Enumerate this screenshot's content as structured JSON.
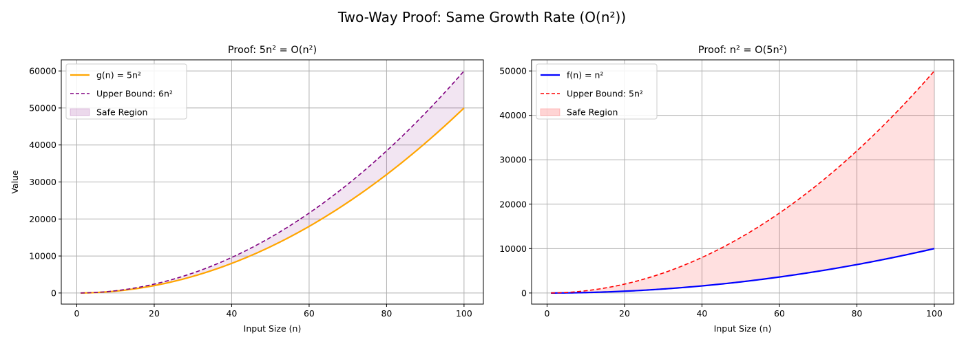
{
  "figure": {
    "title": "Two-Way Proof: Same Growth Rate (O(n²))"
  },
  "chart_data": [
    {
      "type": "line",
      "title": "Proof: 5n² = O(n²)",
      "xlabel": "Input Size (n)",
      "ylabel": "Value",
      "xlim": [
        -4,
        105
      ],
      "ylim": [
        -3000,
        63000
      ],
      "xticks": [
        0,
        20,
        40,
        60,
        80,
        100
      ],
      "yticks": [
        0,
        10000,
        20000,
        30000,
        40000,
        50000,
        60000
      ],
      "grid": true,
      "legend_position": "upper-left",
      "x_range": [
        1,
        100
      ],
      "series": [
        {
          "name": "g(n) = 5n²",
          "formula": "5n^2",
          "coef": 5,
          "color": "#ffa500",
          "style": "solid",
          "x": [
            1,
            10,
            20,
            30,
            40,
            50,
            60,
            70,
            80,
            90,
            100
          ],
          "y": [
            5,
            500,
            2000,
            4500,
            8000,
            12500,
            18000,
            24500,
            32000,
            40500,
            50000
          ]
        },
        {
          "name": "Upper Bound: 6n²",
          "formula": "6n^2",
          "coef": 6,
          "color": "#800080",
          "style": "dashed",
          "x": [
            1,
            10,
            20,
            30,
            40,
            50,
            60,
            70,
            80,
            90,
            100
          ],
          "y": [
            6,
            600,
            2400,
            5400,
            9600,
            15000,
            21600,
            29400,
            38400,
            48600,
            60000
          ]
        }
      ],
      "fill": {
        "name": "Safe Region",
        "between": [
          "g(n) = 5n²",
          "Upper Bound: 6n²"
        ],
        "color": "#800080",
        "opacity": 0.1
      }
    },
    {
      "type": "line",
      "title": "Proof: n² = O(5n²)",
      "xlabel": "Input Size (n)",
      "ylabel": "",
      "xlim": [
        -4,
        105
      ],
      "ylim": [
        -2500,
        52500
      ],
      "xticks": [
        0,
        20,
        40,
        60,
        80,
        100
      ],
      "yticks": [
        0,
        10000,
        20000,
        30000,
        40000,
        50000
      ],
      "grid": true,
      "legend_position": "upper-left",
      "x_range": [
        1,
        100
      ],
      "series": [
        {
          "name": "f(n) = n²",
          "formula": "n^2",
          "coef": 1,
          "color": "#0000ff",
          "style": "solid",
          "x": [
            1,
            10,
            20,
            30,
            40,
            50,
            60,
            70,
            80,
            90,
            100
          ],
          "y": [
            1,
            100,
            400,
            900,
            1600,
            2500,
            3600,
            4900,
            6400,
            8100,
            10000
          ]
        },
        {
          "name": "Upper Bound: 5n²",
          "formula": "5n^2",
          "coef": 5,
          "color": "#ff0000",
          "style": "dashed",
          "x": [
            1,
            10,
            20,
            30,
            40,
            50,
            60,
            70,
            80,
            90,
            100
          ],
          "y": [
            5,
            500,
            2000,
            4500,
            8000,
            12500,
            18000,
            24500,
            32000,
            40500,
            50000
          ]
        }
      ],
      "fill": {
        "name": "Safe Region",
        "between": [
          "f(n) = n²",
          "Upper Bound: 5n²"
        ],
        "color": "#ff0000",
        "opacity": 0.12
      }
    }
  ]
}
